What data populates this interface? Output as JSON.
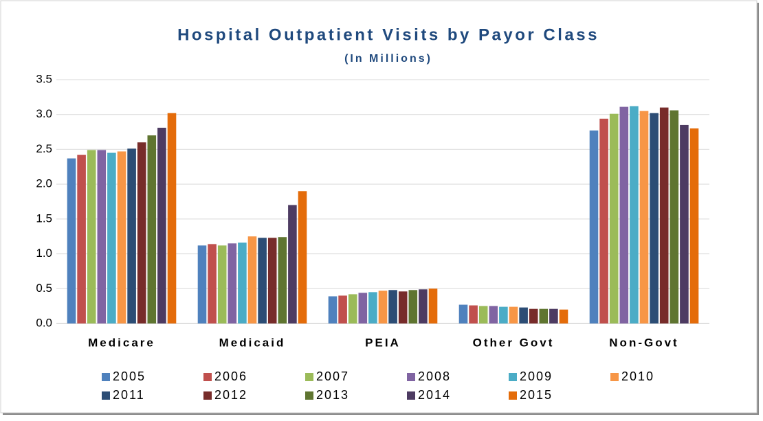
{
  "chart_data": {
    "type": "bar",
    "title": "Hospital Outpatient Visits by Payor Class",
    "subtitle": "(In Millions)",
    "categories": [
      "Medicare",
      "Medicaid",
      "PEIA",
      "Other Govt",
      "Non-Govt"
    ],
    "series": [
      {
        "name": "2005",
        "color": "#4f81bd",
        "values": [
          2.37,
          1.12,
          0.39,
          0.27,
          2.77
        ]
      },
      {
        "name": "2006",
        "color": "#c0504d",
        "values": [
          2.42,
          1.14,
          0.4,
          0.26,
          2.94
        ]
      },
      {
        "name": "2007",
        "color": "#9bbb59",
        "values": [
          2.49,
          1.12,
          0.42,
          0.25,
          3.01
        ]
      },
      {
        "name": "2008",
        "color": "#8064a2",
        "values": [
          2.49,
          1.15,
          0.44,
          0.25,
          3.11
        ]
      },
      {
        "name": "2009",
        "color": "#4bacc6",
        "values": [
          2.45,
          1.16,
          0.45,
          0.24,
          3.12
        ]
      },
      {
        "name": "2010",
        "color": "#f79646",
        "values": [
          2.47,
          1.25,
          0.47,
          0.24,
          3.05
        ]
      },
      {
        "name": "2011",
        "color": "#2c4d75",
        "values": [
          2.51,
          1.23,
          0.48,
          0.23,
          3.02
        ]
      },
      {
        "name": "2012",
        "color": "#772c2a",
        "values": [
          2.6,
          1.23,
          0.46,
          0.21,
          3.1
        ]
      },
      {
        "name": "2013",
        "color": "#5f7530",
        "values": [
          2.7,
          1.24,
          0.48,
          0.21,
          3.06
        ]
      },
      {
        "name": "2014",
        "color": "#4d3b62",
        "values": [
          2.81,
          1.7,
          0.49,
          0.21,
          2.85
        ]
      },
      {
        "name": "2015",
        "color": "#e46c0a",
        "values": [
          3.02,
          1.9,
          0.5,
          0.2,
          2.8
        ]
      }
    ],
    "ylim": [
      0,
      3.5
    ],
    "yticks": [
      {
        "value": 0,
        "label": "0.0"
      },
      0.5,
      {
        "value": 1,
        "label": "1.0"
      },
      1.5,
      {
        "value": 2,
        "label": "2.0"
      },
      2.5,
      {
        "value": 3,
        "label": "3.0"
      },
      3.5
    ],
    "grid": true,
    "legend": "bottom"
  }
}
